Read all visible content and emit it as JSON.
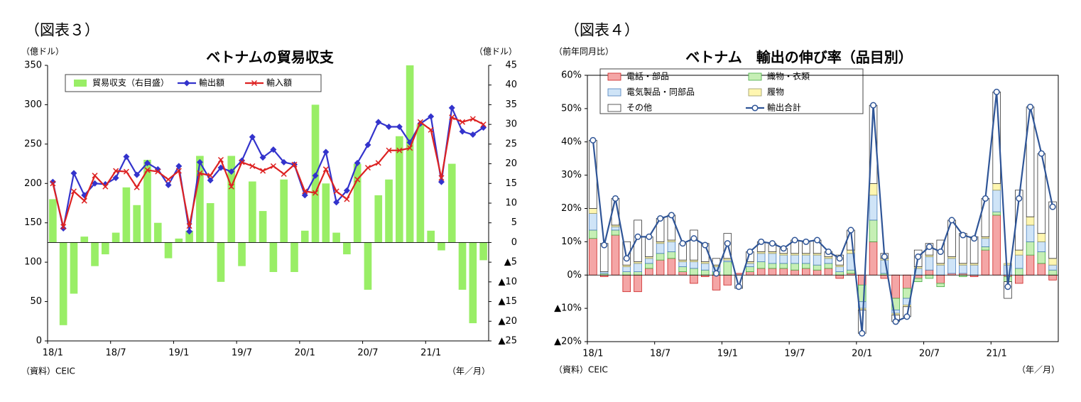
{
  "chart_data": [
    {
      "type": "combo",
      "figure_label": "（図表３）",
      "title": "ベトナムの貿易収支",
      "y_unit": "（億ドル）",
      "y2_unit": "（億ドル）",
      "source": "（資料）CEIC",
      "x_unit": "（年／月）",
      "categories": [
        "18/1",
        null,
        null,
        null,
        null,
        null,
        "18/7",
        null,
        null,
        null,
        null,
        null,
        "19/1",
        null,
        null,
        null,
        null,
        null,
        "19/7",
        null,
        null,
        null,
        null,
        null,
        "20/1",
        null,
        null,
        null,
        null,
        null,
        "20/7",
        null,
        null,
        null,
        null,
        null,
        "21/1",
        null,
        null,
        null,
        null,
        null
      ],
      "ylim": [
        0,
        350
      ],
      "yticks": [
        0,
        50,
        100,
        150,
        200,
        250,
        300,
        350
      ],
      "y2lim": [
        -25,
        45
      ],
      "y2ticks": [
        {
          "value": -25,
          "label": "▲25"
        },
        {
          "value": -20,
          "label": "▲20"
        },
        {
          "value": -15,
          "label": "▲15"
        },
        {
          "value": -10,
          "label": "▲10"
        },
        {
          "value": -5,
          "label": "▲5"
        },
        0,
        5,
        10,
        15,
        20,
        25,
        30,
        35,
        40,
        45
      ],
      "grid": false,
      "series": [
        {
          "name": "貿易収支（右目盛）",
          "type": "bar",
          "axis": "y2",
          "color": "#99ee66",
          "values": [
            11,
            -21,
            -13,
            1.5,
            -6,
            -3,
            2.5,
            14,
            9.5,
            21,
            5,
            -4,
            1,
            3,
            22,
            10,
            -10,
            22,
            -6,
            15.5,
            8,
            -7.5,
            16,
            -7.5,
            3,
            35,
            15,
            2.5,
            -3,
            20,
            -12,
            12,
            16,
            27,
            45,
            30,
            3,
            -2,
            20,
            -12,
            -20.5,
            -4.5
          ]
        },
        {
          "name": "輸出額",
          "type": "line",
          "marker": "diamond",
          "color": "#3333cc",
          "values": [
            202,
            143,
            213,
            185,
            200,
            199,
            207,
            234,
            211,
            226,
            218,
            198,
            222,
            139,
            227,
            204,
            220,
            215,
            229,
            259,
            233,
            243,
            227,
            224,
            185,
            210,
            240,
            176,
            191,
            226,
            249,
            278,
            272,
            272,
            252,
            276,
            285,
            202,
            296,
            266,
            262,
            271
          ]
        },
        {
          "name": "輸入額",
          "type": "line",
          "marker": "x",
          "color": "#dd2222",
          "values": [
            200,
            145,
            190,
            178,
            210,
            196,
            216,
            215,
            195,
            217,
            215,
            205,
            216,
            146,
            213,
            210,
            230,
            196,
            227,
            222,
            216,
            222,
            212,
            224,
            190,
            188,
            218,
            190,
            180,
            205,
            220,
            226,
            242,
            242,
            245,
            278,
            268,
            207,
            284,
            278,
            282,
            275
          ]
        }
      ]
    },
    {
      "type": "combo",
      "figure_label": "（図表４）",
      "title": "ベトナム　輸出の伸び率（品目別）",
      "y_unit": "（前年同月比）",
      "source": "（資料）CEIC",
      "x_unit": "（年／月）",
      "categories": [
        "18/1",
        null,
        null,
        null,
        null,
        null,
        "18/7",
        null,
        null,
        null,
        null,
        null,
        "19/1",
        null,
        null,
        null,
        null,
        null,
        "19/7",
        null,
        null,
        null,
        null,
        null,
        "20/1",
        null,
        null,
        null,
        null,
        null,
        "20/7",
        null,
        null,
        null,
        null,
        null,
        "21/1",
        null,
        null,
        null,
        null,
        null
      ],
      "ylim": [
        -20,
        60
      ],
      "yticks": [
        {
          "value": -20,
          "label": "▲20%"
        },
        {
          "value": -10,
          "label": "▲10%"
        },
        {
          "value": 0,
          "label": "0%"
        },
        {
          "value": 10,
          "label": "10%"
        },
        {
          "value": 20,
          "label": "20%"
        },
        {
          "value": 30,
          "label": "30%"
        },
        {
          "value": 40,
          "label": "40%"
        },
        {
          "value": 50,
          "label": "50%"
        },
        {
          "value": 60,
          "label": "60%"
        }
      ],
      "grid": false,
      "series": [
        {
          "name": "電話・部品",
          "type": "stacked_bar",
          "color": "#f4a6a6",
          "stroke": "#cc2222",
          "values": [
            11,
            -0.5,
            12,
            -5,
            -5,
            2,
            4.5,
            5,
            1,
            -2.5,
            -0.5,
            -4.5,
            -3,
            0.5,
            1,
            2,
            2,
            2,
            1.5,
            2,
            1.5,
            2,
            -1,
            0.5,
            -3,
            10,
            -1,
            -7,
            -4,
            -1,
            1.5,
            -2.5,
            0.5,
            0.5,
            -0.5,
            7.5,
            18,
            -0.5,
            -2.5,
            6,
            3.5,
            -1.5
          ]
        },
        {
          "name": "織物・衣類",
          "type": "stacked_bar",
          "color": "#c6efb5",
          "stroke": "#44aa44",
          "values": [
            2.5,
            0.5,
            1.5,
            1,
            1,
            1.5,
            2,
            2,
            1.5,
            2,
            1.5,
            1,
            4,
            0,
            1.5,
            2,
            1.5,
            1.5,
            2,
            1.5,
            1.5,
            1.5,
            1,
            1,
            -5,
            6.5,
            0.5,
            -3.5,
            -3,
            -1,
            -1,
            -1,
            0,
            -0.5,
            0,
            1,
            1,
            -1.5,
            2,
            4,
            3.5,
            1.5
          ]
        },
        {
          "name": "電気製品・同部品",
          "type": "stacked_bar",
          "color": "#cfe4f7",
          "stroke": "#4a7ebb",
          "values": [
            5,
            0.5,
            1,
            1.5,
            2.5,
            1.5,
            3,
            3,
            1.5,
            2,
            2,
            1.5,
            0.5,
            0,
            1,
            2.5,
            3,
            2.5,
            2.5,
            2.5,
            3,
            1.5,
            1.5,
            5,
            -2,
            7.5,
            4,
            -1,
            -2,
            2,
            4,
            3,
            4.5,
            2.5,
            3,
            2.5,
            6.5,
            3,
            4,
            5,
            3,
            1.5
          ]
        },
        {
          "name": "履物",
          "type": "stacked_bar",
          "color": "#fff6b0",
          "stroke": "#999966",
          "values": [
            1.5,
            0,
            0.5,
            0.5,
            0.5,
            0.5,
            0.5,
            0.5,
            0.5,
            0.5,
            0.5,
            0.5,
            0.5,
            0,
            0.5,
            0.5,
            0.5,
            0.5,
            0.5,
            0.5,
            0.5,
            0.5,
            0.5,
            1,
            -0.5,
            3.5,
            0.5,
            -0.5,
            -0.5,
            0.5,
            0.5,
            0.5,
            0.5,
            0.5,
            0.5,
            0.5,
            2,
            0.5,
            1.5,
            2.5,
            2.5,
            2
          ]
        },
        {
          "name": "その他",
          "type": "stacked_bar",
          "color": "#ffffff",
          "stroke": "#333333",
          "values": [
            20.5,
            8.5,
            8,
            7,
            12.5,
            6,
            7,
            7.5,
            5,
            9,
            5.5,
            2,
            7.5,
            -4,
            3,
            3,
            2.5,
            1.5,
            4,
            3.5,
            4,
            1.5,
            3,
            6,
            -7,
            23.5,
            1.5,
            -2,
            -3,
            5,
            3.5,
            7,
            11,
            9,
            8,
            11.5,
            27.5,
            -5,
            18,
            33,
            24,
            17
          ]
        },
        {
          "name": "輸出合計",
          "type": "line",
          "marker": "circle",
          "color": "#2f5597",
          "values": [
            40.5,
            9,
            23,
            5,
            11.5,
            11.5,
            17,
            18,
            9.5,
            11,
            9,
            0.5,
            9.5,
            -3.5,
            7,
            10,
            9.5,
            8,
            10.5,
            10,
            10.5,
            7,
            5,
            13.5,
            -17.5,
            51,
            5.5,
            -14,
            -12.5,
            5.5,
            8.5,
            7,
            16.5,
            12,
            11,
            23,
            55,
            -3.5,
            23,
            50.5,
            36.5,
            20.5
          ]
        }
      ]
    }
  ]
}
